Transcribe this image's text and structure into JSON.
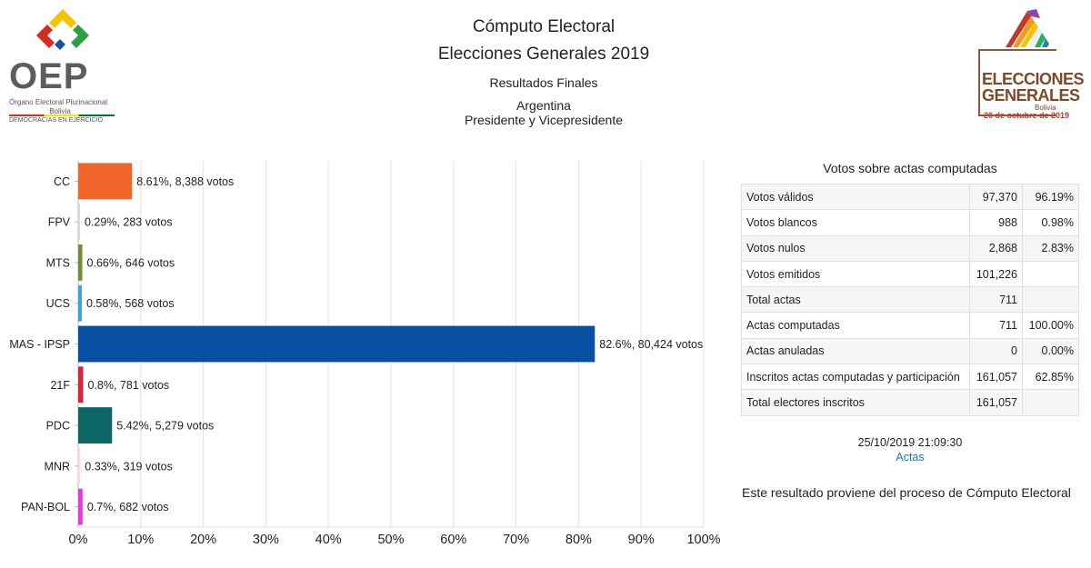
{
  "header": {
    "title": "Cómputo Electoral",
    "subtitle": "Elecciones Generales 2019",
    "results": "Resultados Finales",
    "country": "Argentina",
    "office": "Presidente y Vicepresidente"
  },
  "logo_left": {
    "acronym": "OEP",
    "name": "Órgano Electoral Plurinacional",
    "country": "Bolivia",
    "slogan": "DEMOCRACIAS EN EJERCICIO"
  },
  "logo_right": {
    "line1": "ELECCIONES",
    "line2": "GENERALES",
    "country": "Bolivia",
    "date": "20 de octubre de 2019"
  },
  "chart_data": {
    "type": "bar",
    "orientation": "horizontal",
    "categories": [
      "CC",
      "FPV",
      "MTS",
      "UCS",
      "MAS - IPSP",
      "21F",
      "PDC",
      "MNR",
      "PAN-BOL"
    ],
    "values": [
      8.61,
      0.29,
      0.66,
      0.58,
      82.6,
      0.8,
      5.42,
      0.33,
      0.7
    ],
    "votes": [
      8388,
      283,
      646,
      568,
      80424,
      781,
      5279,
      319,
      682
    ],
    "labels": [
      "8.61%,  8,388 votos",
      "0.29%,  283 votos",
      "0.66%,  646 votos",
      "0.58%,  568 votos",
      "82.6%,  80,424 votos",
      "0.8%,  781 votos",
      "5.42%,  5,279 votos",
      "0.33%,  319 votos",
      "0.7%,  682 votos"
    ],
    "colors": [
      "#f0662a",
      "#d8d8d8",
      "#6f8b3b",
      "#3aa6db",
      "#064fa1",
      "#d7233b",
      "#0b6665",
      "#ffd6f2",
      "#e33ae0"
    ],
    "xticks": [
      "0%",
      "10%",
      "20%",
      "30%",
      "40%",
      "50%",
      "60%",
      "70%",
      "80%",
      "90%",
      "100%"
    ],
    "xlim": [
      0,
      100
    ],
    "grid": true
  },
  "table": {
    "title": "Votos sobre actas computadas",
    "rows": [
      {
        "label": "Votos válidos",
        "value": "97,370",
        "pct": "96.19%"
      },
      {
        "label": "Votos blancos",
        "value": "988",
        "pct": "0.98%"
      },
      {
        "label": "Votos nulos",
        "value": "2,868",
        "pct": "2.83%"
      },
      {
        "label": "Votos emitidos",
        "value": "101,226",
        "pct": ""
      },
      {
        "label": "Total actas",
        "value": "711",
        "pct": ""
      },
      {
        "label": "Actas computadas",
        "value": "711",
        "pct": "100.00%"
      },
      {
        "label": "Actas anuladas",
        "value": "0",
        "pct": "0.00%"
      },
      {
        "label": "Inscritos actas computadas y participación",
        "value": "161,057",
        "pct": "62.85%"
      },
      {
        "label": "Total electores inscritos",
        "value": "161,057",
        "pct": ""
      }
    ]
  },
  "footer": {
    "timestamp": "25/10/2019 21:09:30",
    "actas_link": "Actas",
    "note": "Este resultado proviene del proceso de Cómputo Electoral"
  }
}
